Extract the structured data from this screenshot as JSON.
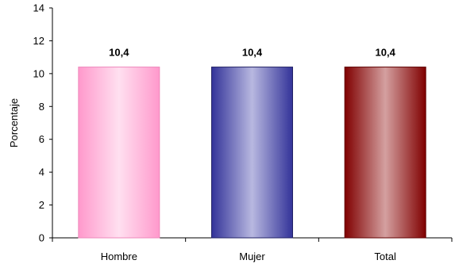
{
  "chart_data": {
    "type": "bar",
    "title": "",
    "xlabel": "",
    "ylabel": "Porcentaje",
    "ylim": [
      0,
      14
    ],
    "yticks": [
      0,
      2,
      4,
      6,
      8,
      10,
      12,
      14
    ],
    "grid": false,
    "legend": "none",
    "categories": [
      "Hombre",
      "Mujer",
      "Total"
    ],
    "values": [
      10.4,
      10.4,
      10.4
    ],
    "data_labels": [
      "10,4",
      "10,4",
      "10,4"
    ],
    "bar_colors": [
      {
        "edge": "#ff99cc",
        "center": "#ffe0f0",
        "stroke": "#ee88bb"
      },
      {
        "edge": "#333399",
        "center": "#b8b8e0",
        "stroke": "#222266"
      },
      {
        "edge": "#800000",
        "center": "#d4a0a0",
        "stroke": "#600000"
      }
    ]
  }
}
